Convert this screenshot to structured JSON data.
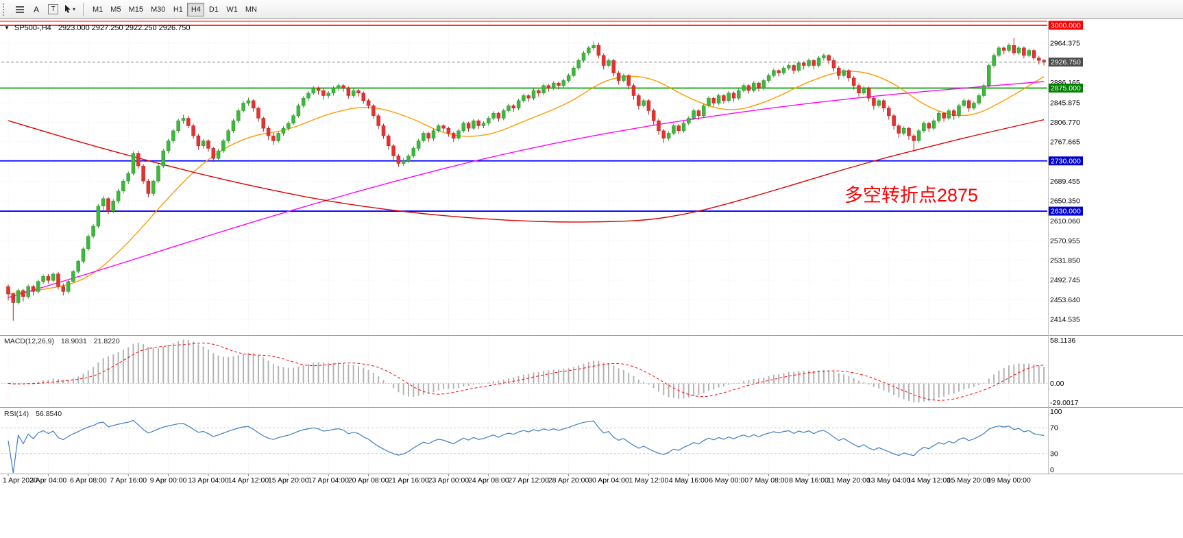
{
  "toolbar": {
    "label_tool": "A",
    "textbox_tool": "T",
    "timeframes": [
      "M1",
      "M5",
      "M15",
      "M30",
      "H1",
      "H4",
      "D1",
      "W1",
      "MN"
    ],
    "active_timeframe": "H4"
  },
  "chart": {
    "header": {
      "collapse_icon": "▼",
      "symbol_period": "SP500-,H4",
      "ohlc_values": "2923.000 2927.250 2922.250 2926.750"
    },
    "price_axis": {
      "ticks": [
        2964.375,
        2886.165,
        2845.875,
        2806.77,
        2767.665,
        2689.455,
        2650.35,
        2610.06,
        2570.955,
        2531.85,
        2492.745,
        2453.64,
        2414.535
      ],
      "current_price": {
        "value": 2926.75,
        "label_bg": "#4d4d4d",
        "label_fg": "#ffffff"
      }
    },
    "levels": [
      {
        "price": 3000.0,
        "color": "#ff0000",
        "label_bg": "#ff0000"
      },
      {
        "price": 2875.0,
        "color": "#00a000",
        "label_bg": "#008000"
      },
      {
        "price": 2730.0,
        "color": "#0000ff",
        "label_bg": "#0000d0"
      },
      {
        "price": 2630.0,
        "color": "#0000ff",
        "label_bg": "#0000d0"
      }
    ]
  },
  "annotation": {
    "text": "多空转折点2875",
    "color": "#ff0000"
  },
  "time_axis": {
    "label_every_n_candles": 8,
    "labels": [
      "1 Apr 2020",
      "3 Apr 04:00",
      "6 Apr 08:00",
      "7 Apr 16:00",
      "9 Apr 00:00",
      "13 Apr 04:00",
      "14 Apr 12:00",
      "15 Apr 20:00",
      "17 Apr 04:00",
      "20 Apr 08:00",
      "21 Apr 16:00",
      "23 Apr 00:00",
      "24 Apr 08:00",
      "27 Apr 12:00",
      "28 Apr 20:00",
      "30 Apr 04:00",
      "1 May 12:00",
      "4 May 16:00",
      "6 May 00:00",
      "7 May 08:00",
      "8 May 16:00",
      "11 May 20:00",
      "13 May 04:00",
      "14 May 12:00",
      "15 May 20:00",
      "19 May 00:00"
    ]
  },
  "chart_data": {
    "type": "candlestick",
    "symbol": "SP500-",
    "timeframe": "H4",
    "title": "SP500-,H4",
    "ylim": [
      2384.5,
      3008.0
    ],
    "colors": {
      "up": "#3cb83c",
      "up_border": "#2c8f2c",
      "down": "#e23232",
      "down_border": "#b82222",
      "grid": "#ececec",
      "background": "#ffffff"
    },
    "ohlc": [
      [
        2480,
        2484,
        2452,
        2465
      ],
      [
        2465,
        2468,
        2412,
        2448
      ],
      [
        2448,
        2476,
        2444,
        2472
      ],
      [
        2472,
        2475,
        2450,
        2460
      ],
      [
        2460,
        2484,
        2456,
        2480
      ],
      [
        2480,
        2483,
        2462,
        2470
      ],
      [
        2470,
        2494,
        2466,
        2490
      ],
      [
        2490,
        2504,
        2485,
        2500
      ],
      [
        2500,
        2505,
        2486,
        2492
      ],
      [
        2492,
        2508,
        2488,
        2505
      ],
      [
        2505,
        2509,
        2474,
        2480
      ],
      [
        2480,
        2486,
        2462,
        2470
      ],
      [
        2470,
        2493,
        2466,
        2490
      ],
      [
        2490,
        2513,
        2487,
        2510
      ],
      [
        2510,
        2533,
        2506,
        2530
      ],
      [
        2530,
        2558,
        2526,
        2555
      ],
      [
        2555,
        2584,
        2551,
        2580
      ],
      [
        2580,
        2604,
        2576,
        2600
      ],
      [
        2600,
        2644,
        2596,
        2640
      ],
      [
        2640,
        2660,
        2630,
        2655
      ],
      [
        2655,
        2658,
        2624,
        2630
      ],
      [
        2630,
        2654,
        2626,
        2650
      ],
      [
        2650,
        2674,
        2645,
        2670
      ],
      [
        2670,
        2694,
        2665,
        2690
      ],
      [
        2690,
        2709,
        2684,
        2705
      ],
      [
        2705,
        2749,
        2701,
        2745
      ],
      [
        2745,
        2750,
        2714,
        2720
      ],
      [
        2720,
        2724,
        2684,
        2690
      ],
      [
        2690,
        2694,
        2658,
        2665
      ],
      [
        2665,
        2693,
        2660,
        2690
      ],
      [
        2690,
        2724,
        2686,
        2720
      ],
      [
        2720,
        2754,
        2716,
        2750
      ],
      [
        2750,
        2774,
        2745,
        2770
      ],
      [
        2770,
        2794,
        2765,
        2790
      ],
      [
        2790,
        2814,
        2786,
        2810
      ],
      [
        2810,
        2822,
        2804,
        2815
      ],
      [
        2815,
        2820,
        2795,
        2800
      ],
      [
        2800,
        2804,
        2774,
        2780
      ],
      [
        2780,
        2784,
        2752,
        2760
      ],
      [
        2760,
        2774,
        2754,
        2770
      ],
      [
        2770,
        2773,
        2748,
        2755
      ],
      [
        2755,
        2758,
        2728,
        2735
      ],
      [
        2735,
        2754,
        2730,
        2750
      ],
      [
        2750,
        2774,
        2746,
        2770
      ],
      [
        2770,
        2794,
        2766,
        2790
      ],
      [
        2790,
        2814,
        2786,
        2810
      ],
      [
        2810,
        2834,
        2806,
        2830
      ],
      [
        2830,
        2849,
        2826,
        2845
      ],
      [
        2845,
        2856,
        2840,
        2850
      ],
      [
        2850,
        2853,
        2828,
        2835
      ],
      [
        2835,
        2838,
        2808,
        2815
      ],
      [
        2815,
        2818,
        2788,
        2795
      ],
      [
        2795,
        2799,
        2772,
        2780
      ],
      [
        2780,
        2786,
        2762,
        2770
      ],
      [
        2770,
        2789,
        2766,
        2785
      ],
      [
        2785,
        2799,
        2780,
        2795
      ],
      [
        2795,
        2809,
        2790,
        2805
      ],
      [
        2805,
        2824,
        2801,
        2820
      ],
      [
        2820,
        2844,
        2816,
        2840
      ],
      [
        2840,
        2859,
        2836,
        2855
      ],
      [
        2855,
        2869,
        2850,
        2865
      ],
      [
        2865,
        2879,
        2861,
        2875
      ],
      [
        2875,
        2878,
        2862,
        2870
      ],
      [
        2870,
        2874,
        2852,
        2860
      ],
      [
        2860,
        2869,
        2855,
        2865
      ],
      [
        2865,
        2879,
        2860,
        2875
      ],
      [
        2875,
        2884,
        2870,
        2880
      ],
      [
        2880,
        2883,
        2868,
        2875
      ],
      [
        2875,
        2878,
        2854,
        2860
      ],
      [
        2860,
        2874,
        2856,
        2870
      ],
      [
        2870,
        2873,
        2858,
        2865
      ],
      [
        2865,
        2868,
        2844,
        2850
      ],
      [
        2850,
        2854,
        2834,
        2840
      ],
      [
        2840,
        2843,
        2814,
        2820
      ],
      [
        2820,
        2824,
        2794,
        2800
      ],
      [
        2800,
        2804,
        2774,
        2780
      ],
      [
        2780,
        2784,
        2752,
        2760
      ],
      [
        2760,
        2764,
        2732,
        2740
      ],
      [
        2740,
        2744,
        2718,
        2725
      ],
      [
        2725,
        2736,
        2720,
        2730
      ],
      [
        2730,
        2744,
        2726,
        2740
      ],
      [
        2740,
        2759,
        2736,
        2755
      ],
      [
        2755,
        2774,
        2750,
        2770
      ],
      [
        2770,
        2789,
        2766,
        2785
      ],
      [
        2785,
        2788,
        2768,
        2775
      ],
      [
        2775,
        2794,
        2770,
        2790
      ],
      [
        2790,
        2804,
        2786,
        2800
      ],
      [
        2800,
        2803,
        2788,
        2795
      ],
      [
        2795,
        2798,
        2778,
        2785
      ],
      [
        2785,
        2788,
        2768,
        2775
      ],
      [
        2775,
        2794,
        2771,
        2790
      ],
      [
        2790,
        2809,
        2786,
        2805
      ],
      [
        2805,
        2808,
        2788,
        2795
      ],
      [
        2795,
        2814,
        2791,
        2810
      ],
      [
        2810,
        2813,
        2794,
        2800
      ],
      [
        2800,
        2809,
        2795,
        2805
      ],
      [
        2805,
        2819,
        2800,
        2815
      ],
      [
        2815,
        2829,
        2811,
        2825
      ],
      [
        2825,
        2828,
        2808,
        2815
      ],
      [
        2815,
        2834,
        2811,
        2830
      ],
      [
        2830,
        2844,
        2826,
        2840
      ],
      [
        2840,
        2843,
        2828,
        2835
      ],
      [
        2835,
        2854,
        2831,
        2850
      ],
      [
        2850,
        2864,
        2846,
        2860
      ],
      [
        2860,
        2863,
        2848,
        2855
      ],
      [
        2855,
        2874,
        2851,
        2870
      ],
      [
        2870,
        2873,
        2858,
        2865
      ],
      [
        2865,
        2884,
        2861,
        2880
      ],
      [
        2880,
        2883,
        2868,
        2875
      ],
      [
        2875,
        2889,
        2871,
        2885
      ],
      [
        2885,
        2888,
        2872,
        2880
      ],
      [
        2880,
        2894,
        2876,
        2890
      ],
      [
        2890,
        2904,
        2886,
        2900
      ],
      [
        2900,
        2919,
        2896,
        2915
      ],
      [
        2915,
        2934,
        2911,
        2930
      ],
      [
        2930,
        2949,
        2926,
        2945
      ],
      [
        2945,
        2959,
        2940,
        2955
      ],
      [
        2955,
        2968,
        2950,
        2960
      ],
      [
        2960,
        2965,
        2934,
        2940
      ],
      [
        2940,
        2944,
        2912,
        2920
      ],
      [
        2920,
        2934,
        2916,
        2930
      ],
      [
        2930,
        2933,
        2898,
        2905
      ],
      [
        2905,
        2909,
        2882,
        2890
      ],
      [
        2890,
        2904,
        2886,
        2900
      ],
      [
        2900,
        2903,
        2872,
        2880
      ],
      [
        2880,
        2884,
        2852,
        2860
      ],
      [
        2860,
        2864,
        2832,
        2840
      ],
      [
        2840,
        2854,
        2836,
        2850
      ],
      [
        2850,
        2853,
        2822,
        2830
      ],
      [
        2830,
        2834,
        2802,
        2810
      ],
      [
        2810,
        2814,
        2782,
        2790
      ],
      [
        2790,
        2794,
        2766,
        2775
      ],
      [
        2775,
        2789,
        2770,
        2785
      ],
      [
        2785,
        2804,
        2781,
        2800
      ],
      [
        2800,
        2803,
        2784,
        2790
      ],
      [
        2790,
        2809,
        2786,
        2805
      ],
      [
        2805,
        2819,
        2801,
        2815
      ],
      [
        2815,
        2834,
        2811,
        2830
      ],
      [
        2830,
        2833,
        2812,
        2820
      ],
      [
        2820,
        2844,
        2816,
        2840
      ],
      [
        2840,
        2859,
        2836,
        2855
      ],
      [
        2855,
        2858,
        2838,
        2845
      ],
      [
        2845,
        2864,
        2841,
        2860
      ],
      [
        2860,
        2863,
        2844,
        2850
      ],
      [
        2850,
        2869,
        2846,
        2865
      ],
      [
        2865,
        2868,
        2848,
        2855
      ],
      [
        2855,
        2874,
        2851,
        2870
      ],
      [
        2870,
        2884,
        2866,
        2880
      ],
      [
        2880,
        2883,
        2864,
        2870
      ],
      [
        2870,
        2889,
        2866,
        2885
      ],
      [
        2885,
        2888,
        2868,
        2875
      ],
      [
        2875,
        2894,
        2871,
        2890
      ],
      [
        2890,
        2904,
        2886,
        2900
      ],
      [
        2900,
        2914,
        2896,
        2910
      ],
      [
        2910,
        2913,
        2898,
        2905
      ],
      [
        2905,
        2919,
        2901,
        2915
      ],
      [
        2915,
        2924,
        2911,
        2920
      ],
      [
        2920,
        2923,
        2903,
        2910
      ],
      [
        2910,
        2929,
        2906,
        2925
      ],
      [
        2925,
        2928,
        2912,
        2920
      ],
      [
        2920,
        2934,
        2916,
        2930
      ],
      [
        2930,
        2933,
        2912,
        2920
      ],
      [
        2920,
        2939,
        2916,
        2935
      ],
      [
        2935,
        2944,
        2930,
        2940
      ],
      [
        2940,
        2943,
        2922,
        2930
      ],
      [
        2930,
        2934,
        2908,
        2915
      ],
      [
        2915,
        2919,
        2892,
        2900
      ],
      [
        2900,
        2914,
        2896,
        2910
      ],
      [
        2910,
        2913,
        2888,
        2895
      ],
      [
        2895,
        2899,
        2872,
        2880
      ],
      [
        2880,
        2884,
        2858,
        2865
      ],
      [
        2865,
        2879,
        2861,
        2875
      ],
      [
        2875,
        2878,
        2848,
        2855
      ],
      [
        2855,
        2859,
        2832,
        2840
      ],
      [
        2840,
        2854,
        2836,
        2850
      ],
      [
        2850,
        2853,
        2828,
        2835
      ],
      [
        2835,
        2839,
        2812,
        2820
      ],
      [
        2820,
        2824,
        2792,
        2800
      ],
      [
        2800,
        2804,
        2776,
        2785
      ],
      [
        2785,
        2799,
        2781,
        2795
      ],
      [
        2795,
        2798,
        2772,
        2780
      ],
      [
        2780,
        2784,
        2748,
        2770
      ],
      [
        2770,
        2794,
        2766,
        2790
      ],
      [
        2790,
        2809,
        2786,
        2805
      ],
      [
        2805,
        2808,
        2788,
        2795
      ],
      [
        2795,
        2814,
        2791,
        2810
      ],
      [
        2810,
        2829,
        2806,
        2825
      ],
      [
        2825,
        2828,
        2808,
        2815
      ],
      [
        2815,
        2834,
        2811,
        2830
      ],
      [
        2830,
        2833,
        2812,
        2820
      ],
      [
        2820,
        2844,
        2816,
        2840
      ],
      [
        2840,
        2854,
        2836,
        2850
      ],
      [
        2850,
        2853,
        2828,
        2835
      ],
      [
        2835,
        2849,
        2831,
        2845
      ],
      [
        2845,
        2864,
        2841,
        2860
      ],
      [
        2860,
        2884,
        2856,
        2880
      ],
      [
        2880,
        2924,
        2876,
        2920
      ],
      [
        2920,
        2944,
        2916,
        2940
      ],
      [
        2940,
        2959,
        2936,
        2955
      ],
      [
        2955,
        2958,
        2942,
        2950
      ],
      [
        2950,
        2964,
        2946,
        2960
      ],
      [
        2960,
        2975,
        2940,
        2945
      ],
      [
        2945,
        2959,
        2941,
        2955
      ],
      [
        2955,
        2958,
        2934,
        2940
      ],
      [
        2940,
        2954,
        2936,
        2950
      ],
      [
        2950,
        2953,
        2930,
        2935
      ],
      [
        2935,
        2939,
        2922,
        2930
      ],
      [
        2930,
        2933,
        2920,
        2926.75
      ]
    ],
    "moving_averages": [
      {
        "name": "fast-ma",
        "color": "#ff9900",
        "anchor_step": 8,
        "values": [
          2465,
          2474,
          2494,
          2566,
          2658,
          2737,
          2780,
          2791,
          2825,
          2841,
          2819,
          2779,
          2779,
          2813,
          2844,
          2897,
          2900,
          2854,
          2826,
          2848,
          2889,
          2914,
          2893,
          2833,
          2814,
          2855,
          2898
        ]
      },
      {
        "name": "medium-ma",
        "color": "#ff00ff",
        "anchor_step": 16,
        "values": [
          2458,
          2505,
          2556,
          2606,
          2653,
          2697,
          2737,
          2771,
          2800,
          2824,
          2845,
          2862,
          2876,
          2888
        ]
      },
      {
        "name": "slow-ma",
        "color": "#dd0000",
        "anchor_step": 8,
        "values": [
          2810,
          2786,
          2763,
          2741,
          2720,
          2700,
          2682,
          2665,
          2650,
          2638,
          2628,
          2620,
          2614,
          2610,
          2608,
          2609,
          2612,
          2625,
          2645,
          2668,
          2692,
          2716,
          2738,
          2758,
          2778,
          2796,
          2812
        ]
      }
    ],
    "indicators": {
      "macd": {
        "title": "MACD(12,26,9)",
        "value_main": "18.9031",
        "value_signal": "21.8220",
        "params": [
          12,
          26,
          9
        ],
        "axis_labels": [
          "58.1136",
          "0.00",
          "-29.0017"
        ],
        "histogram_color": "#b3b3b3",
        "signal_color": "#ff0000"
      },
      "rsi": {
        "title": "RSI(14)",
        "value": "56.8540",
        "period": 14,
        "axis_labels": [
          "100",
          "70",
          "30",
          "0"
        ],
        "levels": [
          70,
          30
        ],
        "line_color": "#3b7cc4"
      }
    }
  }
}
